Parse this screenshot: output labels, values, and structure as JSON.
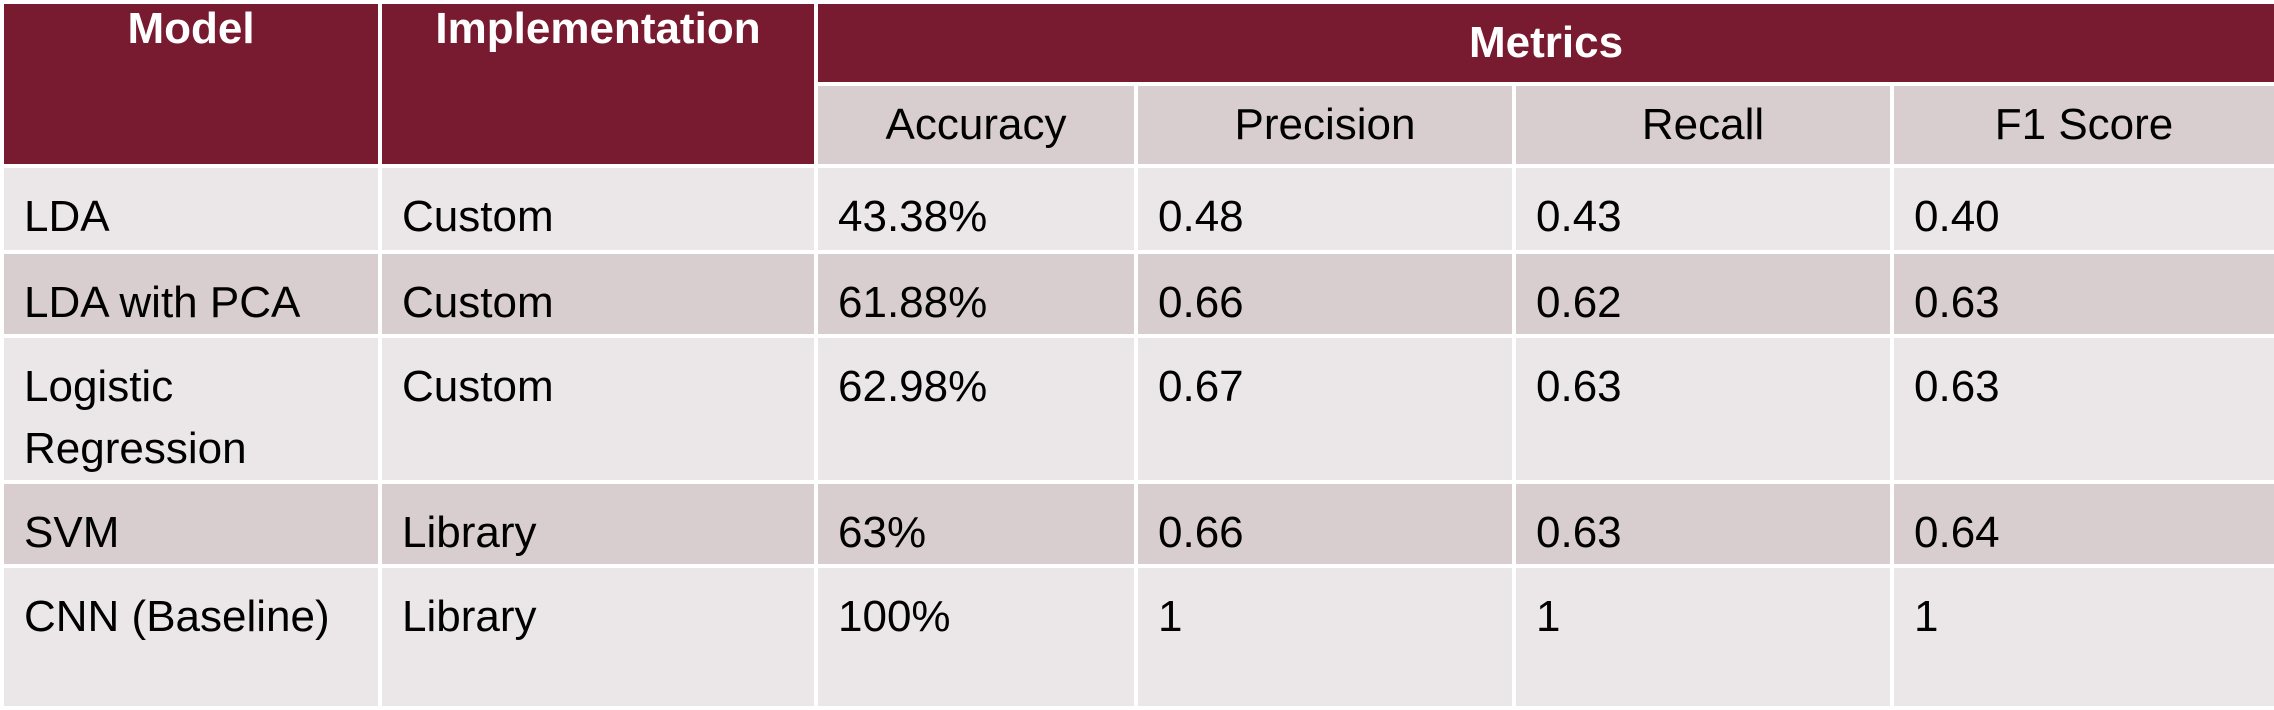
{
  "header": {
    "model": "Model",
    "implementation": "Implementation",
    "metrics": "Metrics",
    "accuracy": "Accuracy",
    "precision": "Precision",
    "recall": "Recall",
    "f1": "F1 Score"
  },
  "rows": [
    {
      "model": "LDA",
      "implementation": "Custom",
      "accuracy": "43.38%",
      "precision": "0.48",
      "recall": "0.43",
      "f1": "0.40"
    },
    {
      "model": "LDA with PCA",
      "implementation": "Custom",
      "accuracy": "61.88%",
      "precision": "0.66",
      "recall": "0.62",
      "f1": "0.63"
    },
    {
      "model": "Logistic Regression",
      "implementation": "Custom",
      "accuracy": "62.98%",
      "precision": "0.67",
      "recall": "0.63",
      "f1": "0.63"
    },
    {
      "model": "SVM",
      "implementation": "Library",
      "accuracy": "63%",
      "precision": "0.66",
      "recall": "0.63",
      "f1": "0.64"
    },
    {
      "model": "CNN (Baseline)",
      "implementation": "Library",
      "accuracy": "100%",
      "precision": "1",
      "recall": "1",
      "f1": "1"
    }
  ]
}
